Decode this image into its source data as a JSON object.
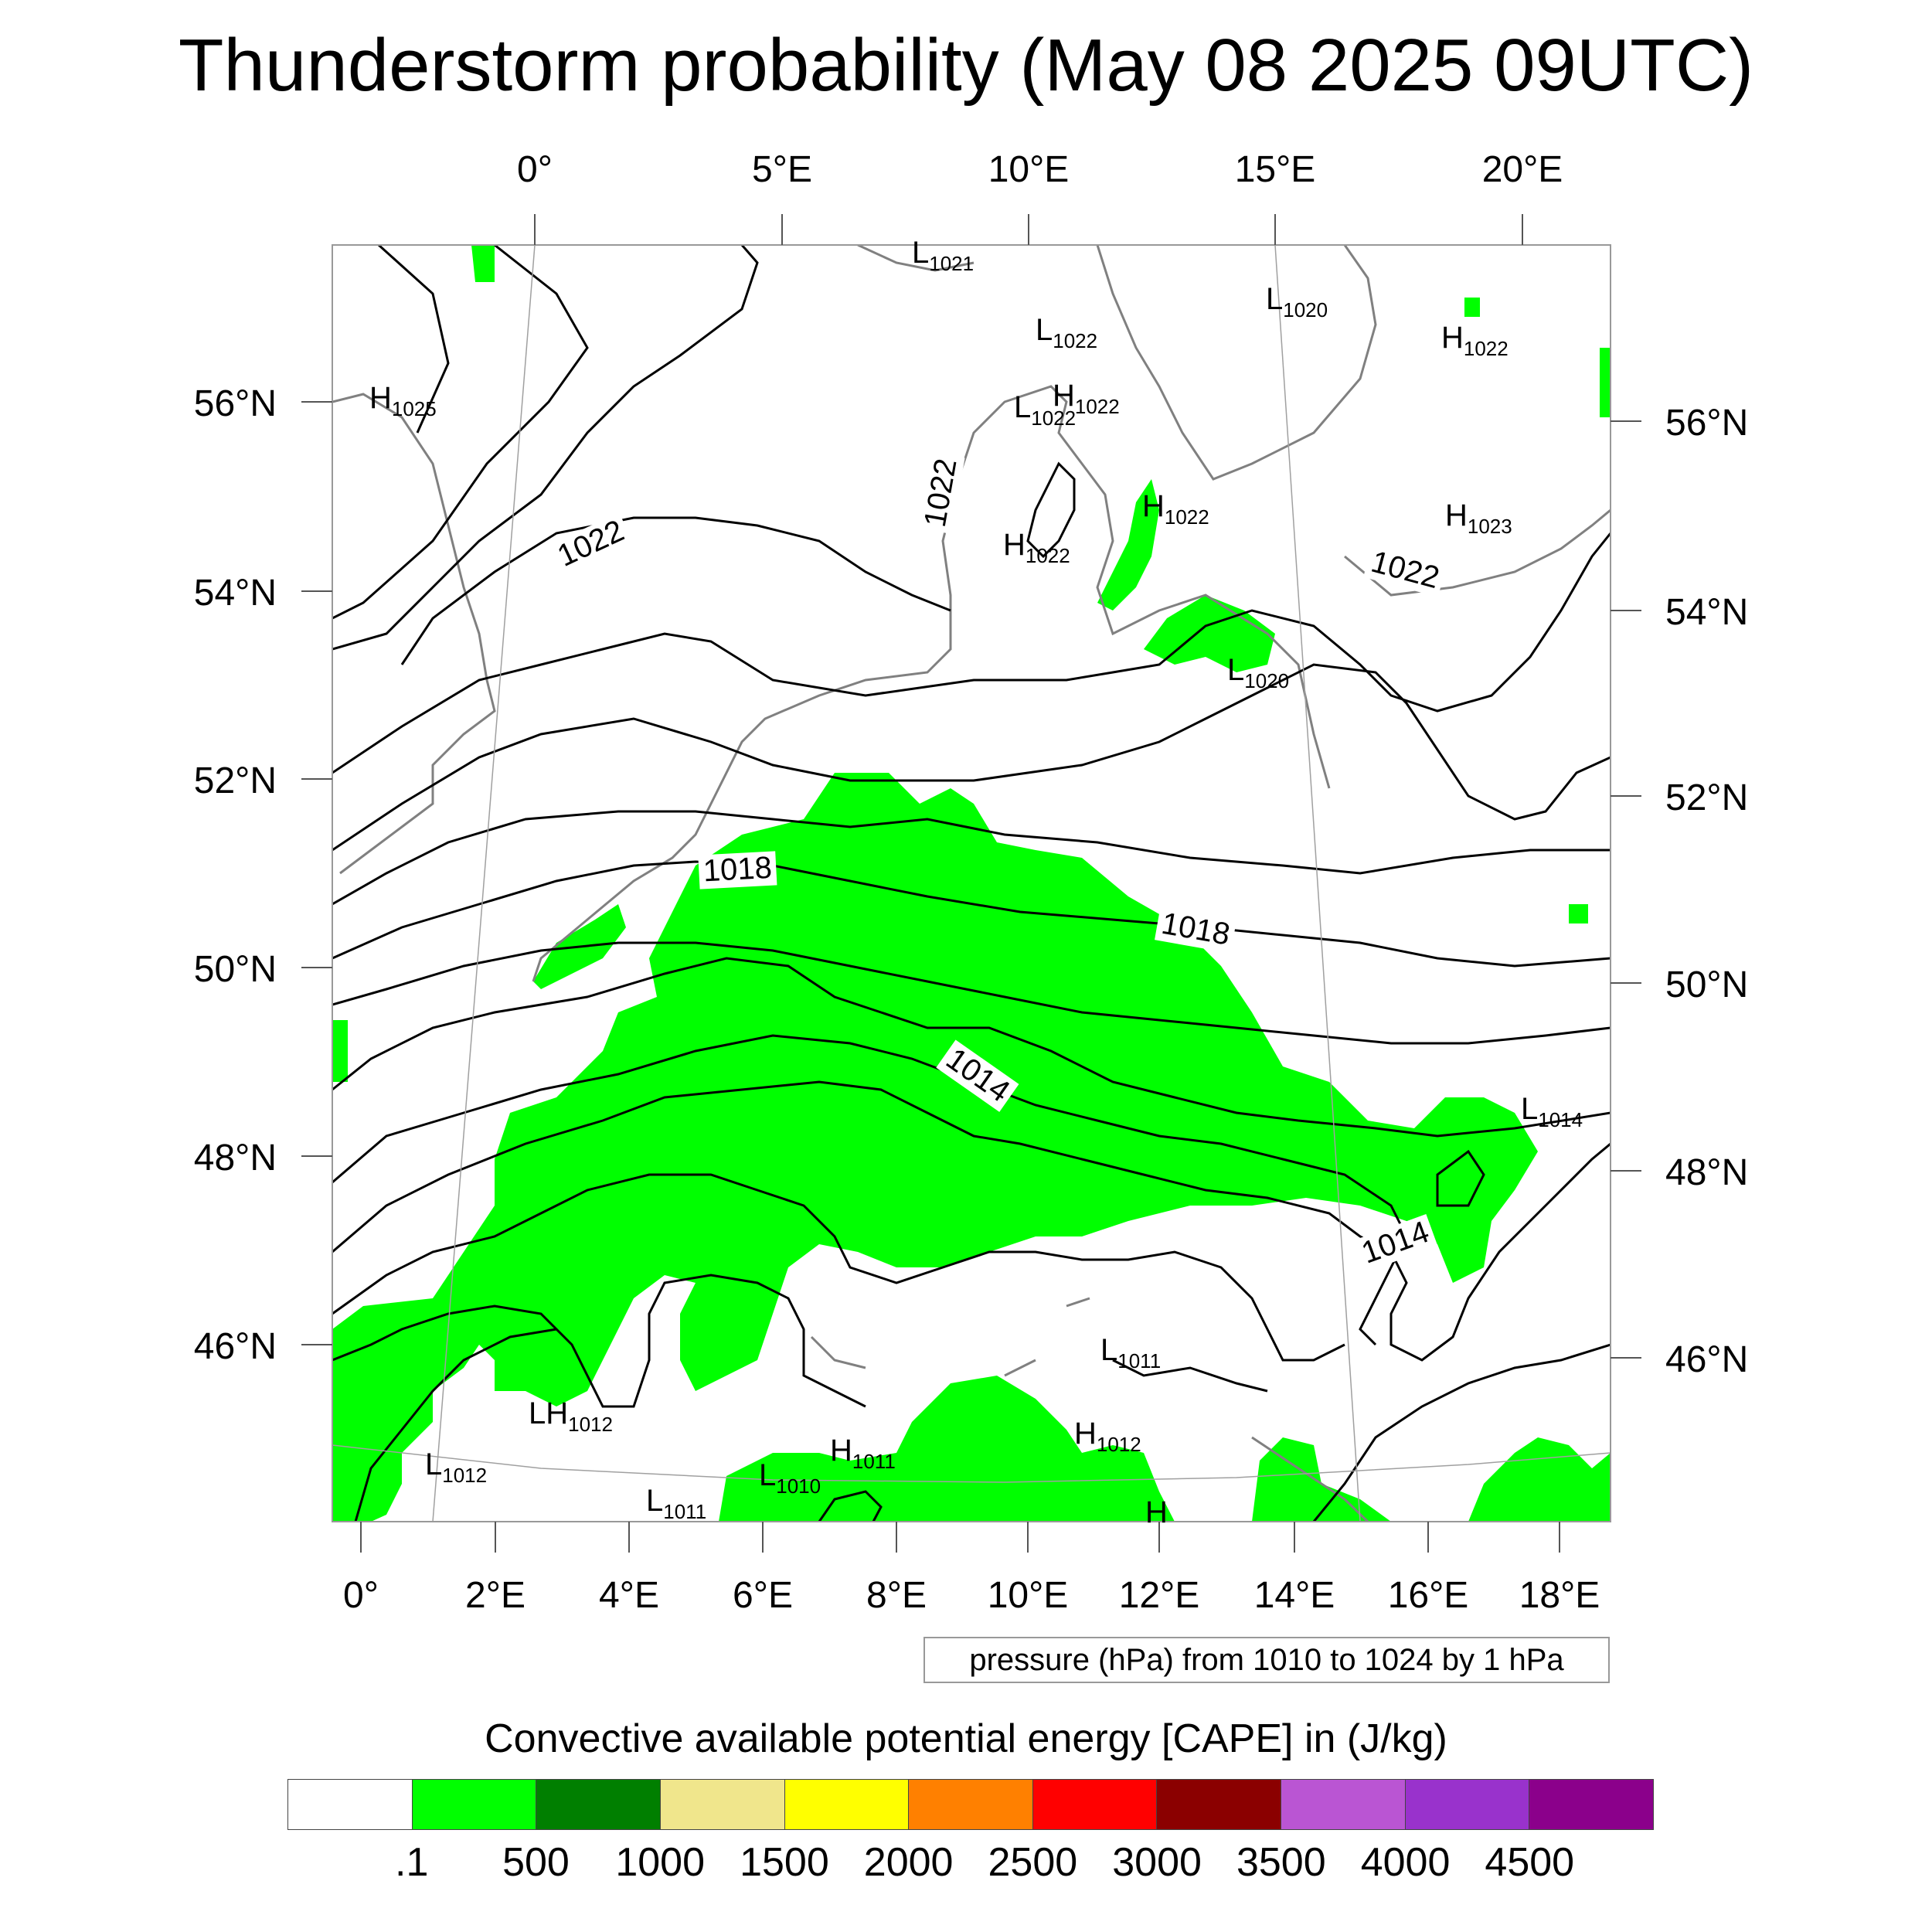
{
  "title": "Thunderstorm probability (May 08 2025 09UTC)",
  "map": {
    "top_lon_labels": [
      "0°",
      "5°E",
      "10°E",
      "15°E",
      "20°E"
    ],
    "left_lat_labels": [
      "56°N",
      "54°N",
      "52°N",
      "50°N",
      "48°N",
      "46°N"
    ],
    "right_lat_labels": [
      "56°N",
      "54°N",
      "52°N",
      "50°N",
      "48°N",
      "46°N"
    ],
    "bottom_lon_labels": [
      "0°",
      "2°E",
      "4°E",
      "6°E",
      "8°E",
      "10°E",
      "12°E",
      "14°E",
      "16°E",
      "18°E"
    ],
    "contour_labels": [
      "1022",
      "1022",
      "1022",
      "1018",
      "1018",
      "1014",
      "1014"
    ],
    "pressure_centers": [
      {
        "type": "L",
        "value": "1021"
      },
      {
        "type": "L",
        "value": "1022"
      },
      {
        "type": "L",
        "value": "1020"
      },
      {
        "type": "H",
        "value": "1022"
      },
      {
        "type": "H",
        "value": "1025"
      },
      {
        "type": "L",
        "value": "1022"
      },
      {
        "type": "H",
        "value": "1022"
      },
      {
        "type": "H",
        "value": "1022"
      },
      {
        "type": "H",
        "value": "1023"
      },
      {
        "type": "H",
        "value": "1022"
      },
      {
        "type": "L",
        "value": "1020"
      },
      {
        "type": "L",
        "value": "1014"
      },
      {
        "type": "L",
        "value": "1011"
      },
      {
        "type": "LH",
        "value": "1012"
      },
      {
        "type": "H",
        "value": "1012"
      },
      {
        "type": "L",
        "value": "1012"
      },
      {
        "type": "H",
        "value": "1011"
      },
      {
        "type": "L",
        "value": "1010"
      },
      {
        "type": "L",
        "value": "1011"
      },
      {
        "type": "H",
        "value": ""
      }
    ],
    "colors": {
      "cape_fill": "#00ff00",
      "contour": "#000000",
      "coastline": "#808080",
      "grid": "#a0a0a0"
    }
  },
  "info_box": "pressure (hPa) from 1010 to 1024 by 1 hPa",
  "colorbar": {
    "title": "Convective available potential energy [CAPE] in (J/kg)",
    "colors": [
      "#ffffff",
      "#00ff00",
      "#007f00",
      "#f0e68c",
      "#ffff00",
      "#ff8000",
      "#ff0000",
      "#8b0000",
      "#ba55d3",
      "#9932cc",
      "#8b008b"
    ],
    "labels": [
      ".1",
      "500",
      "1000",
      "1500",
      "2000",
      "2500",
      "3000",
      "3500",
      "4000",
      "4500"
    ]
  }
}
